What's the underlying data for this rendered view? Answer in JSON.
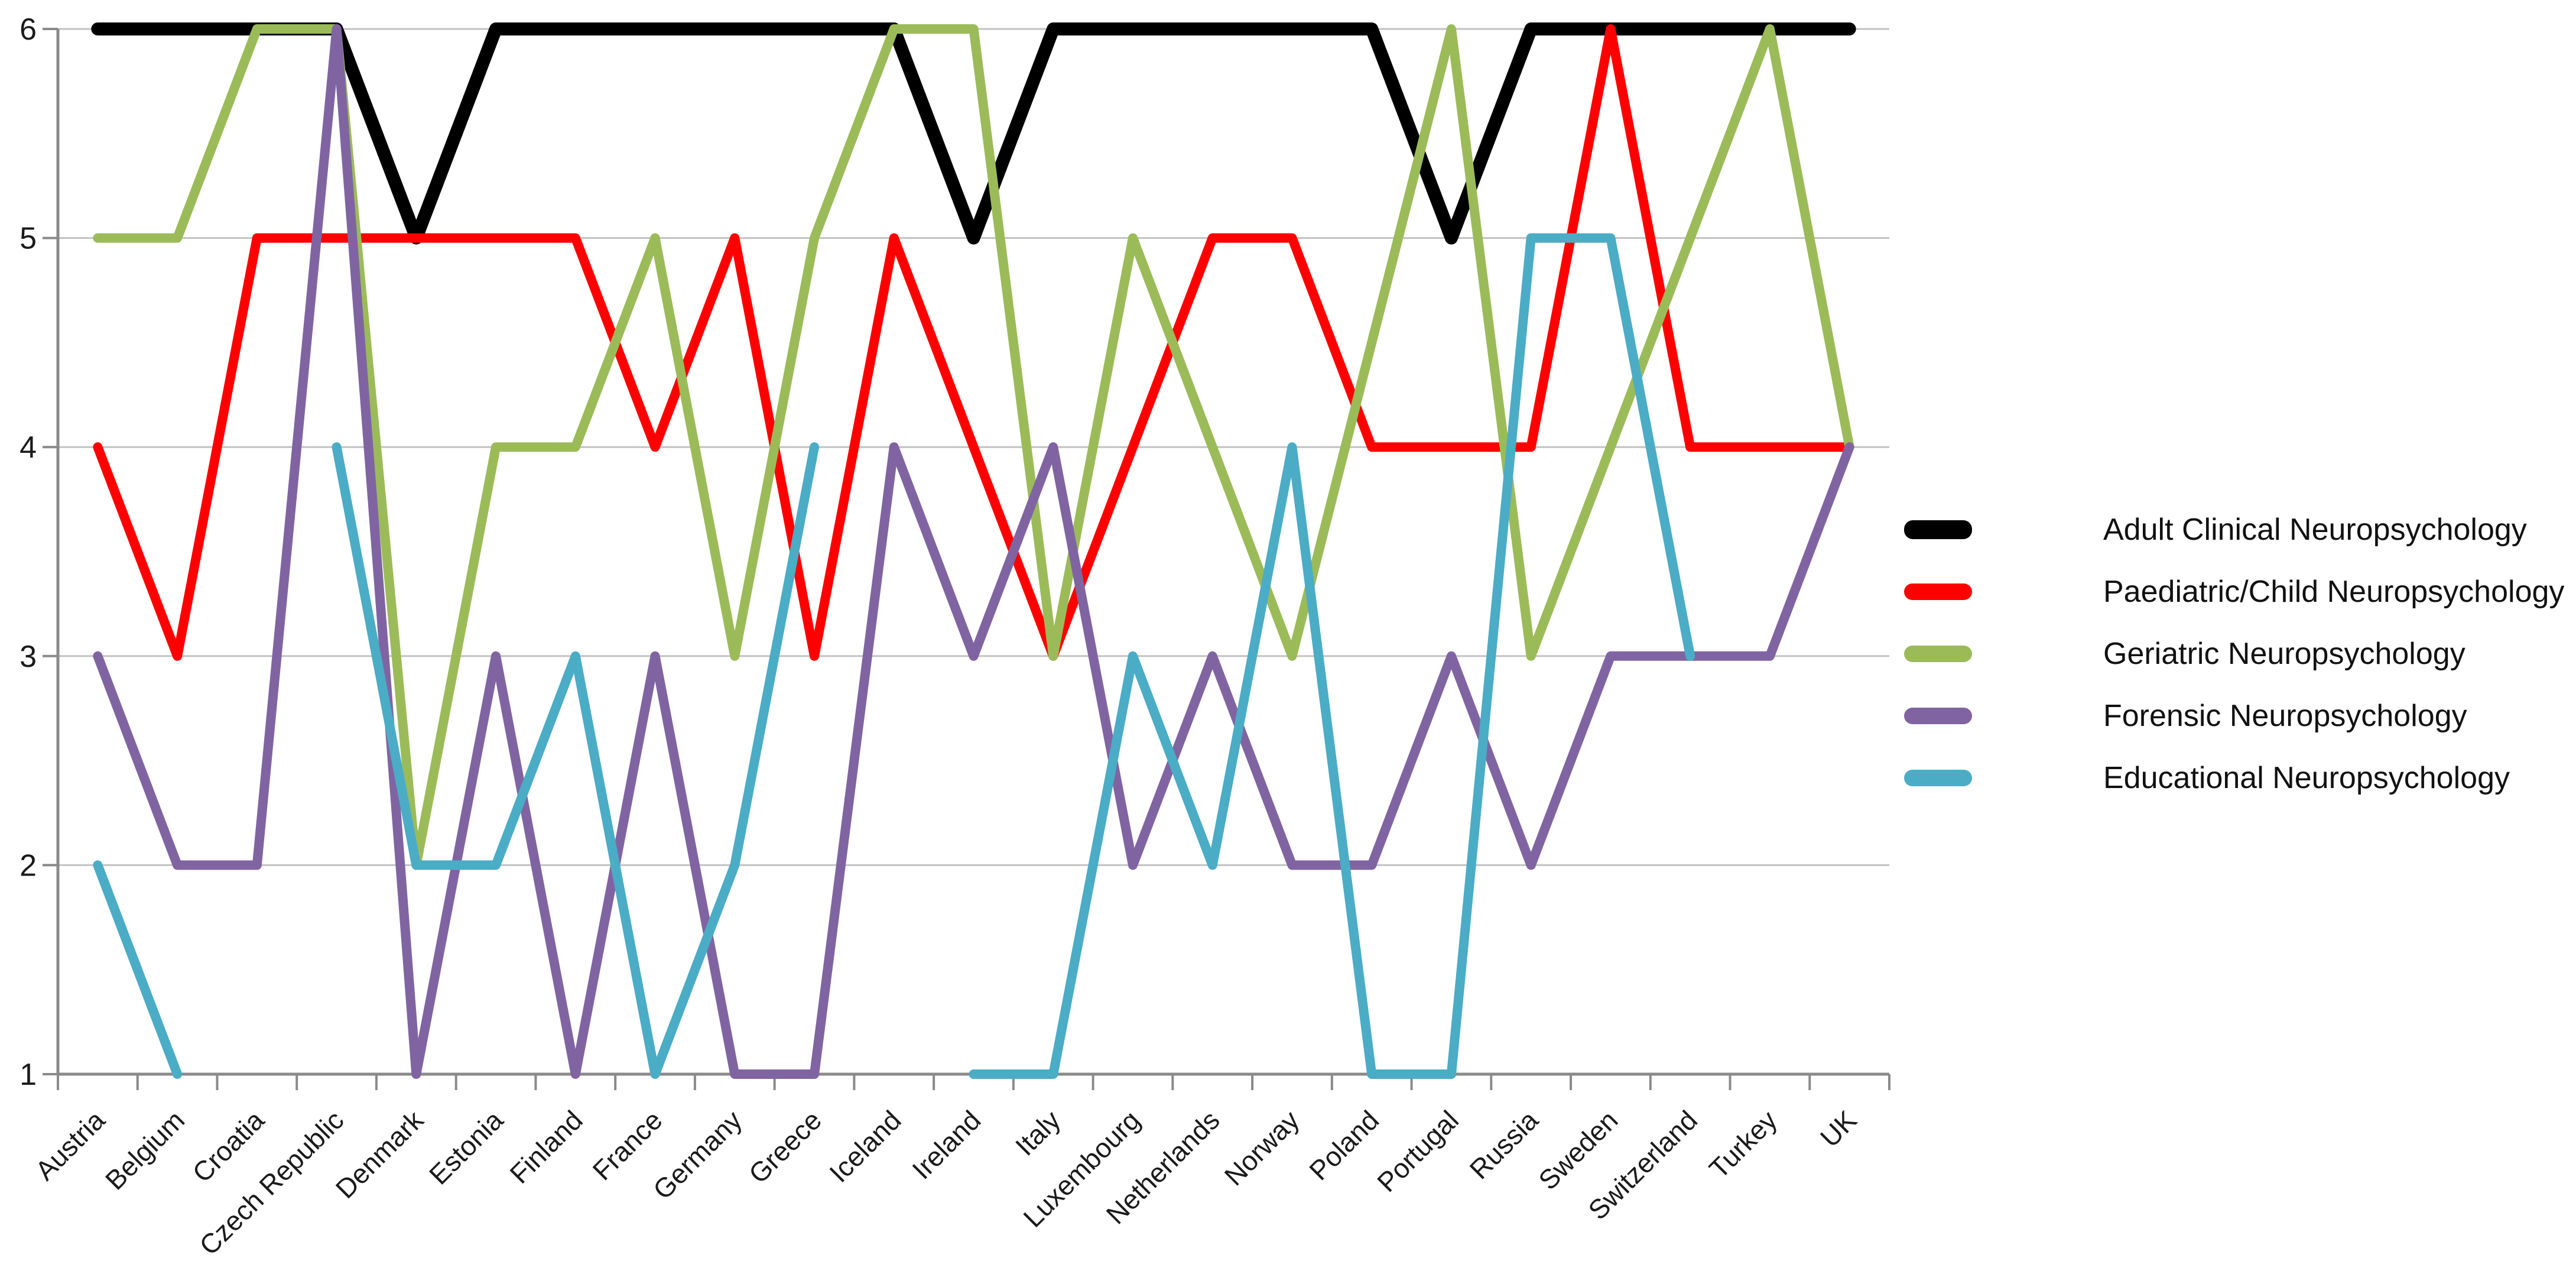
{
  "chart_data": {
    "type": "line",
    "title": "",
    "xlabel": "",
    "ylabel": "",
    "ylim": [
      1,
      6
    ],
    "grid": true,
    "legend_position": "right",
    "background_color": "#FFFFFF",
    "gridline_color": "#C2C2C2",
    "axis_color": "#8A8A8A",
    "text_color": "#1A1A1A",
    "y_tick_labels": [
      "6",
      "5",
      "4",
      "3",
      "2",
      "1"
    ],
    "categories": [
      "Austria",
      "Belgium",
      "Croatia",
      "Czech Republic",
      "Denmark",
      "Estonia",
      "Finland",
      "France",
      "Germany",
      "Greece",
      "Iceland",
      "Ireland",
      "Italy",
      "Luxembourg",
      "Netherlands",
      "Norway",
      "Poland",
      "Portugal",
      "Russia",
      "Sweden",
      "Switzerland",
      "Turkey",
      "UK"
    ],
    "series": [
      {
        "name": "Adult Clinical Neuropsychology",
        "color": "#000000",
        "values": [
          6,
          6,
          6,
          6,
          5,
          6,
          6,
          6,
          6,
          6,
          6,
          5,
          6,
          6,
          6,
          6,
          6,
          5,
          6,
          6,
          6,
          6,
          6
        ]
      },
      {
        "name": "Paediatric/Child Neuropsychology",
        "color": "#FF0000",
        "values": [
          4,
          3,
          5,
          5,
          5,
          5,
          5,
          4,
          5,
          3,
          5,
          4,
          3,
          4,
          5,
          5,
          4,
          4,
          4,
          6,
          4,
          4,
          4
        ]
      },
      {
        "name": "Geriatric Neuropsychology",
        "color": "#9BBB59",
        "values": [
          5,
          5,
          6,
          6,
          2,
          4,
          4,
          5,
          3,
          5,
          6,
          6,
          3,
          5,
          4,
          3,
          4.5,
          6,
          3,
          4,
          5,
          6,
          4
        ]
      },
      {
        "name": "Forensic Neuropsychology",
        "color": "#8064A2",
        "values": [
          3,
          2,
          2,
          6,
          1,
          3,
          1,
          3,
          1,
          1,
          4,
          3,
          4,
          2,
          3,
          2,
          2,
          3,
          2,
          3,
          3,
          3,
          4
        ]
      },
      {
        "name": "Educational Neuropsychology",
        "color": "#4BACC6",
        "values": [
          2,
          1,
          null,
          4,
          2,
          2,
          3,
          1,
          2,
          4,
          null,
          1,
          1,
          3,
          2,
          4,
          1,
          1,
          5,
          5,
          3,
          null,
          null
        ]
      }
    ]
  }
}
